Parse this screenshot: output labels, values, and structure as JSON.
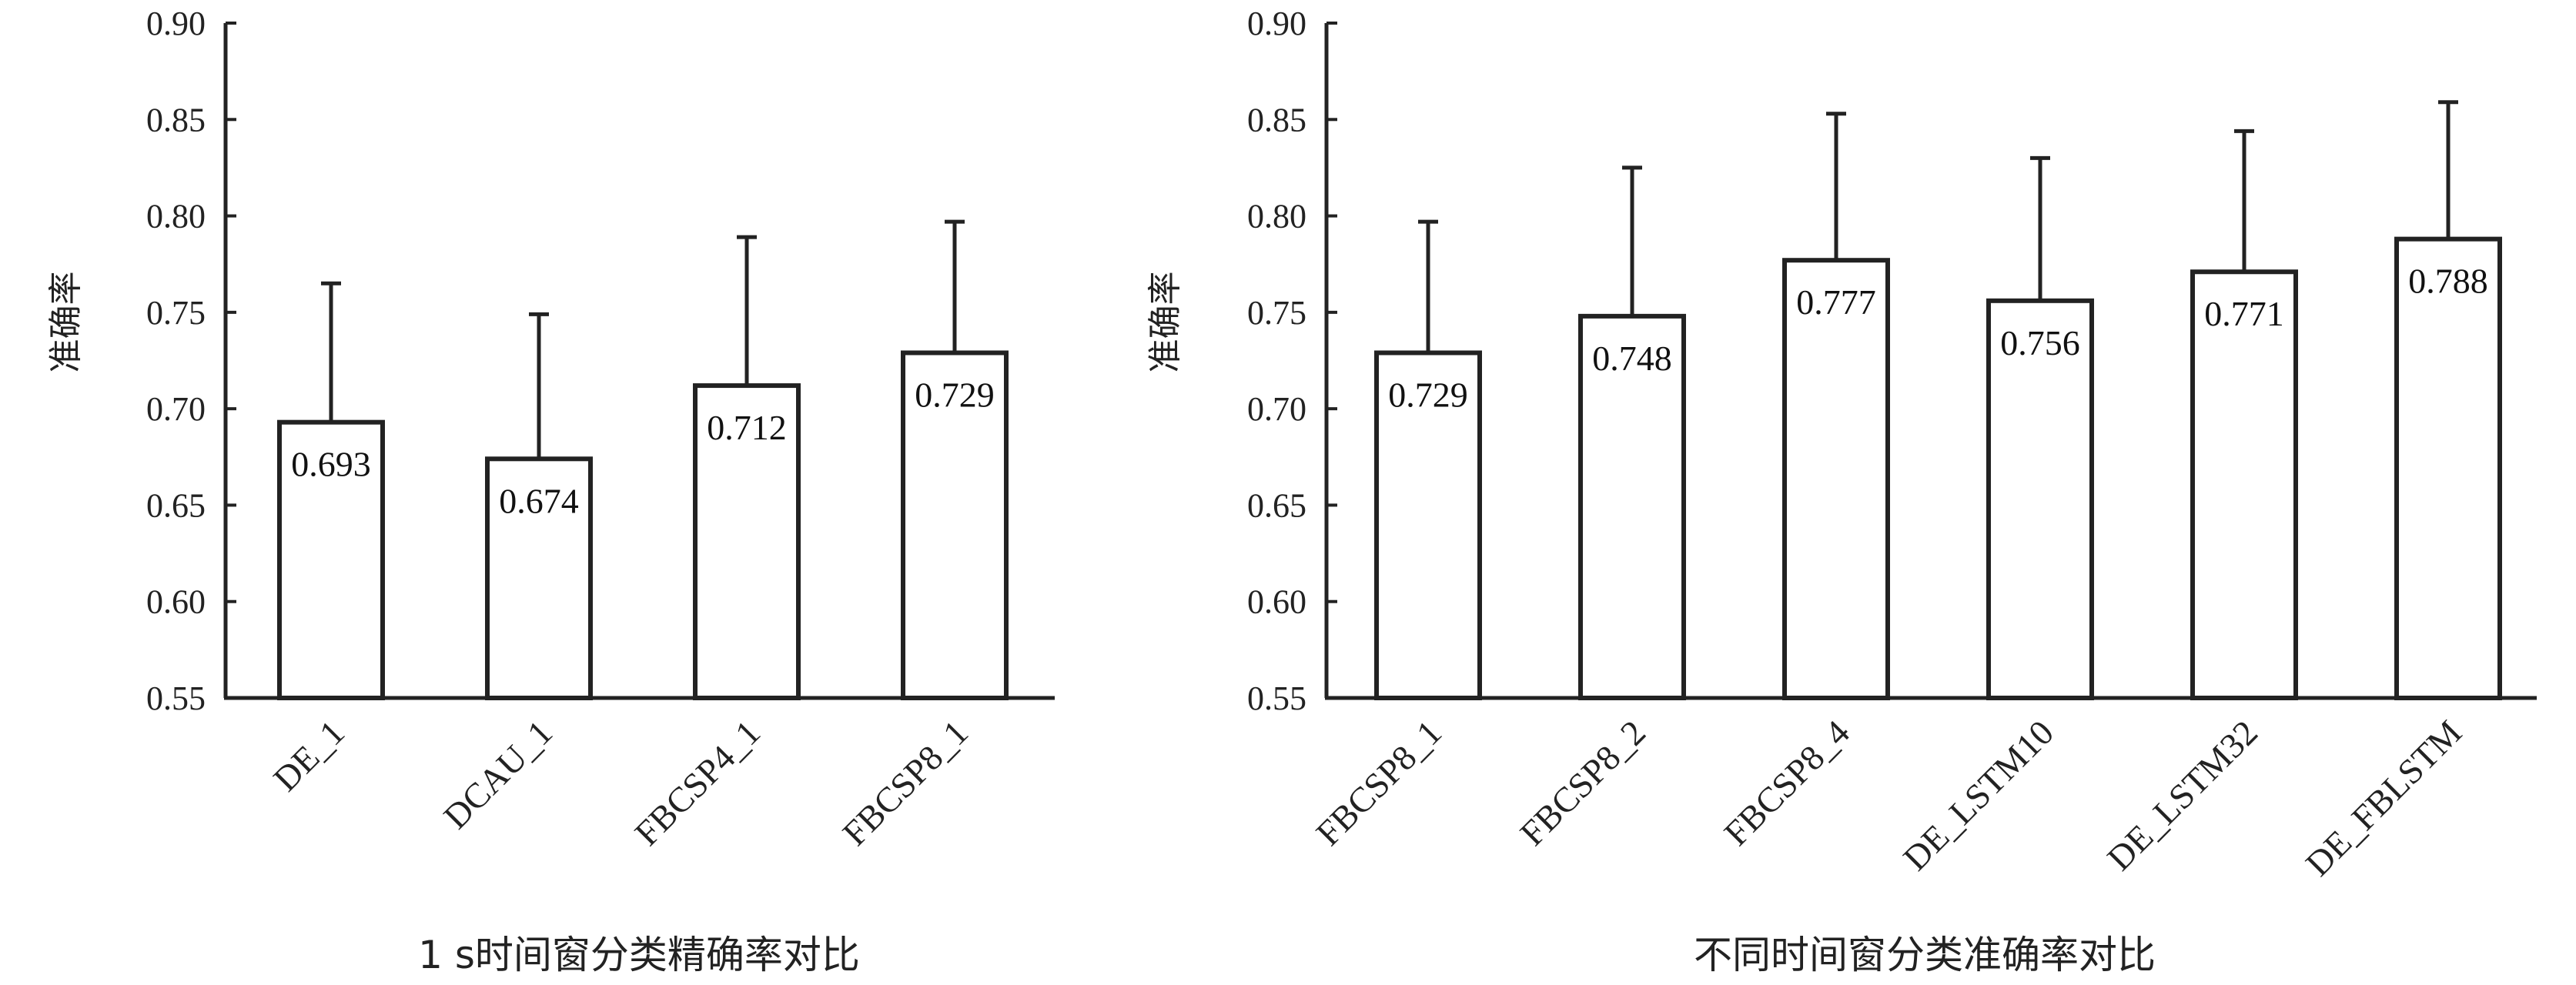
{
  "chart_data": [
    {
      "type": "bar",
      "title": "1 s时间窗分类精确率对比",
      "ylabel": "准确率",
      "xlabel": "",
      "ylim": [
        0.55,
        0.9
      ],
      "yticks": [
        "0.55",
        "0.60",
        "0.65",
        "0.70",
        "0.75",
        "0.80",
        "0.85",
        "0.90"
      ],
      "categories": [
        "DE_1",
        "DCAU_1",
        "FBCSP4_1",
        "FBCSP8_1"
      ],
      "values": [
        0.693,
        0.674,
        0.712,
        0.729
      ],
      "value_labels": [
        "0.693",
        "0.674",
        "0.712",
        "0.729"
      ],
      "error_upper": [
        0.765,
        0.749,
        0.789,
        0.797
      ],
      "grid": false,
      "legend": "none",
      "bar_color": "#ffffff",
      "edge_color": "#222222"
    },
    {
      "type": "bar",
      "title": "不同时间窗分类准确率对比",
      "ylabel": "准确率",
      "xlabel": "",
      "ylim": [
        0.55,
        0.9
      ],
      "yticks": [
        "0.55",
        "0.60",
        "0.65",
        "0.70",
        "0.75",
        "0.80",
        "0.85",
        "0.90"
      ],
      "categories": [
        "FBCSP8_1",
        "FBCSP8_2",
        "FBCSP8_4",
        "DE_LSTM10",
        "DE_LSTM32",
        "DE_FBLSTM"
      ],
      "values": [
        0.729,
        0.748,
        0.777,
        0.756,
        0.771,
        0.788
      ],
      "value_labels": [
        "0.729",
        "0.748",
        "0.777",
        "0.756",
        "0.771",
        "0.788"
      ],
      "error_upper": [
        0.797,
        0.825,
        0.853,
        0.83,
        0.844,
        0.859
      ],
      "grid": false,
      "legend": "none",
      "bar_color": "#ffffff",
      "edge_color": "#222222"
    }
  ]
}
